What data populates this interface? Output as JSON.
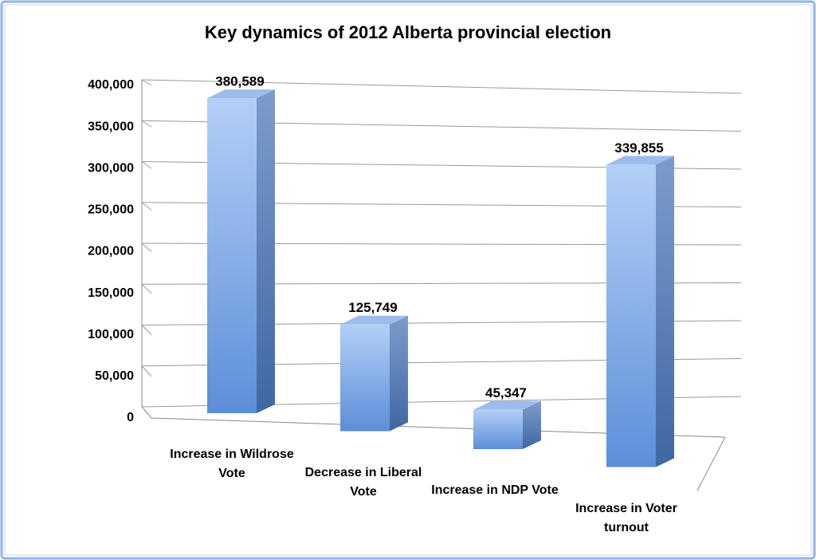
{
  "chart_data": {
    "type": "bar3d",
    "title": "Key dynamics of 2012 Alberta provincial election",
    "categories": [
      "Increase in Wildrose Vote",
      "Decrease in Liberal Vote",
      "Increase in NDP Vote",
      "Increase in Voter turnout"
    ],
    "values": [
      380589,
      125749,
      45347,
      339855
    ],
    "value_labels": [
      "380,589",
      "125,749",
      "45,347",
      "339,855"
    ],
    "color": "#6f9be0",
    "ylim": [
      0,
      400000
    ],
    "yticks": [
      0,
      {
        "value": 50000,
        "label": "50,000"
      },
      {
        "value": 100000,
        "label": "100,000"
      },
      {
        "value": 150000,
        "label": "150,000"
      },
      {
        "value": 200000,
        "label": "200,000"
      },
      {
        "value": 250000,
        "label": "250,000"
      },
      {
        "value": 300000,
        "label": "300,000"
      },
      {
        "value": 350000,
        "label": "350,000"
      },
      {
        "value": 400000,
        "label": "400,000"
      }
    ],
    "grid": true
  }
}
